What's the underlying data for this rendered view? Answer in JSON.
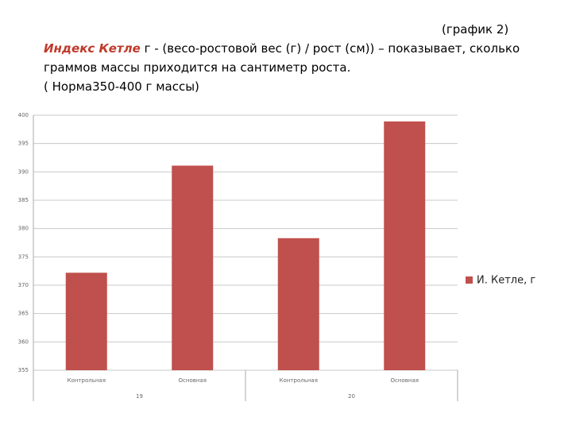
{
  "header": {
    "caption": "(график 2)",
    "term": "Индекс Кетле",
    "definition": " г - (весо-ростовой вес (г) / рост (см)) – показывает, сколько",
    "line2": "граммов массы приходится на сантиметр роста.",
    "norm": "( Норма350-400 г массы)"
  },
  "chart_data": {
    "type": "bar",
    "categories": [
      "Контрольная",
      "Основная",
      "Контрольная",
      "Основная"
    ],
    "groups": [
      "19",
      "20"
    ],
    "series": [
      {
        "name": "И. Кетле, г",
        "color": "#c0504d",
        "values": [
          372.2,
          391.1,
          378.3,
          398.9
        ]
      }
    ],
    "ylim": [
      355,
      400
    ],
    "yticks": [
      355,
      360,
      365,
      370,
      375,
      380,
      385,
      390,
      395,
      400
    ],
    "grid": true,
    "legend": "right"
  }
}
